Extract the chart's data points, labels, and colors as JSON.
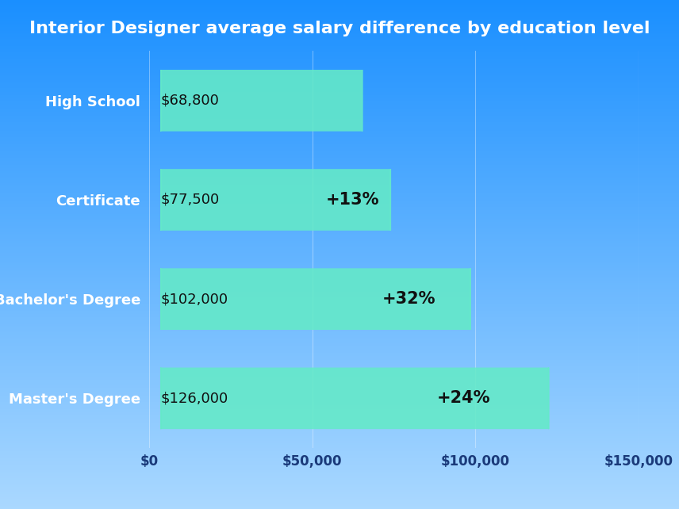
{
  "title": "Interior Designer average salary difference by education level",
  "categories": [
    "High School",
    "Certificate",
    "Bachelor's Degree",
    "Master's Degree"
  ],
  "values": [
    68800,
    77500,
    102000,
    126000
  ],
  "pct_labels": [
    "",
    "+13%",
    "+32%",
    "+24%"
  ],
  "salary_labels": [
    "$68,800",
    "$77,500",
    "$102,000",
    "$126,000"
  ],
  "bar_color": "#64EAC8",
  "xlim": [
    0,
    150000
  ],
  "xtick_values": [
    0,
    50000,
    100000,
    150000
  ],
  "xtick_labels": [
    "$0",
    "$50,000",
    "$100,000",
    "$150,000"
  ],
  "title_color": "#FFFFFF",
  "label_color": "#FFFFFF",
  "salary_text_color": "#111111",
  "pct_text_color": "#111111",
  "bg_top": "#1A8FFF",
  "bg_bottom": "#AAD8FF",
  "title_fontsize": 16,
  "label_fontsize": 13,
  "tick_fontsize": 12,
  "salary_fontsize": 13,
  "pct_fontsize": 15
}
